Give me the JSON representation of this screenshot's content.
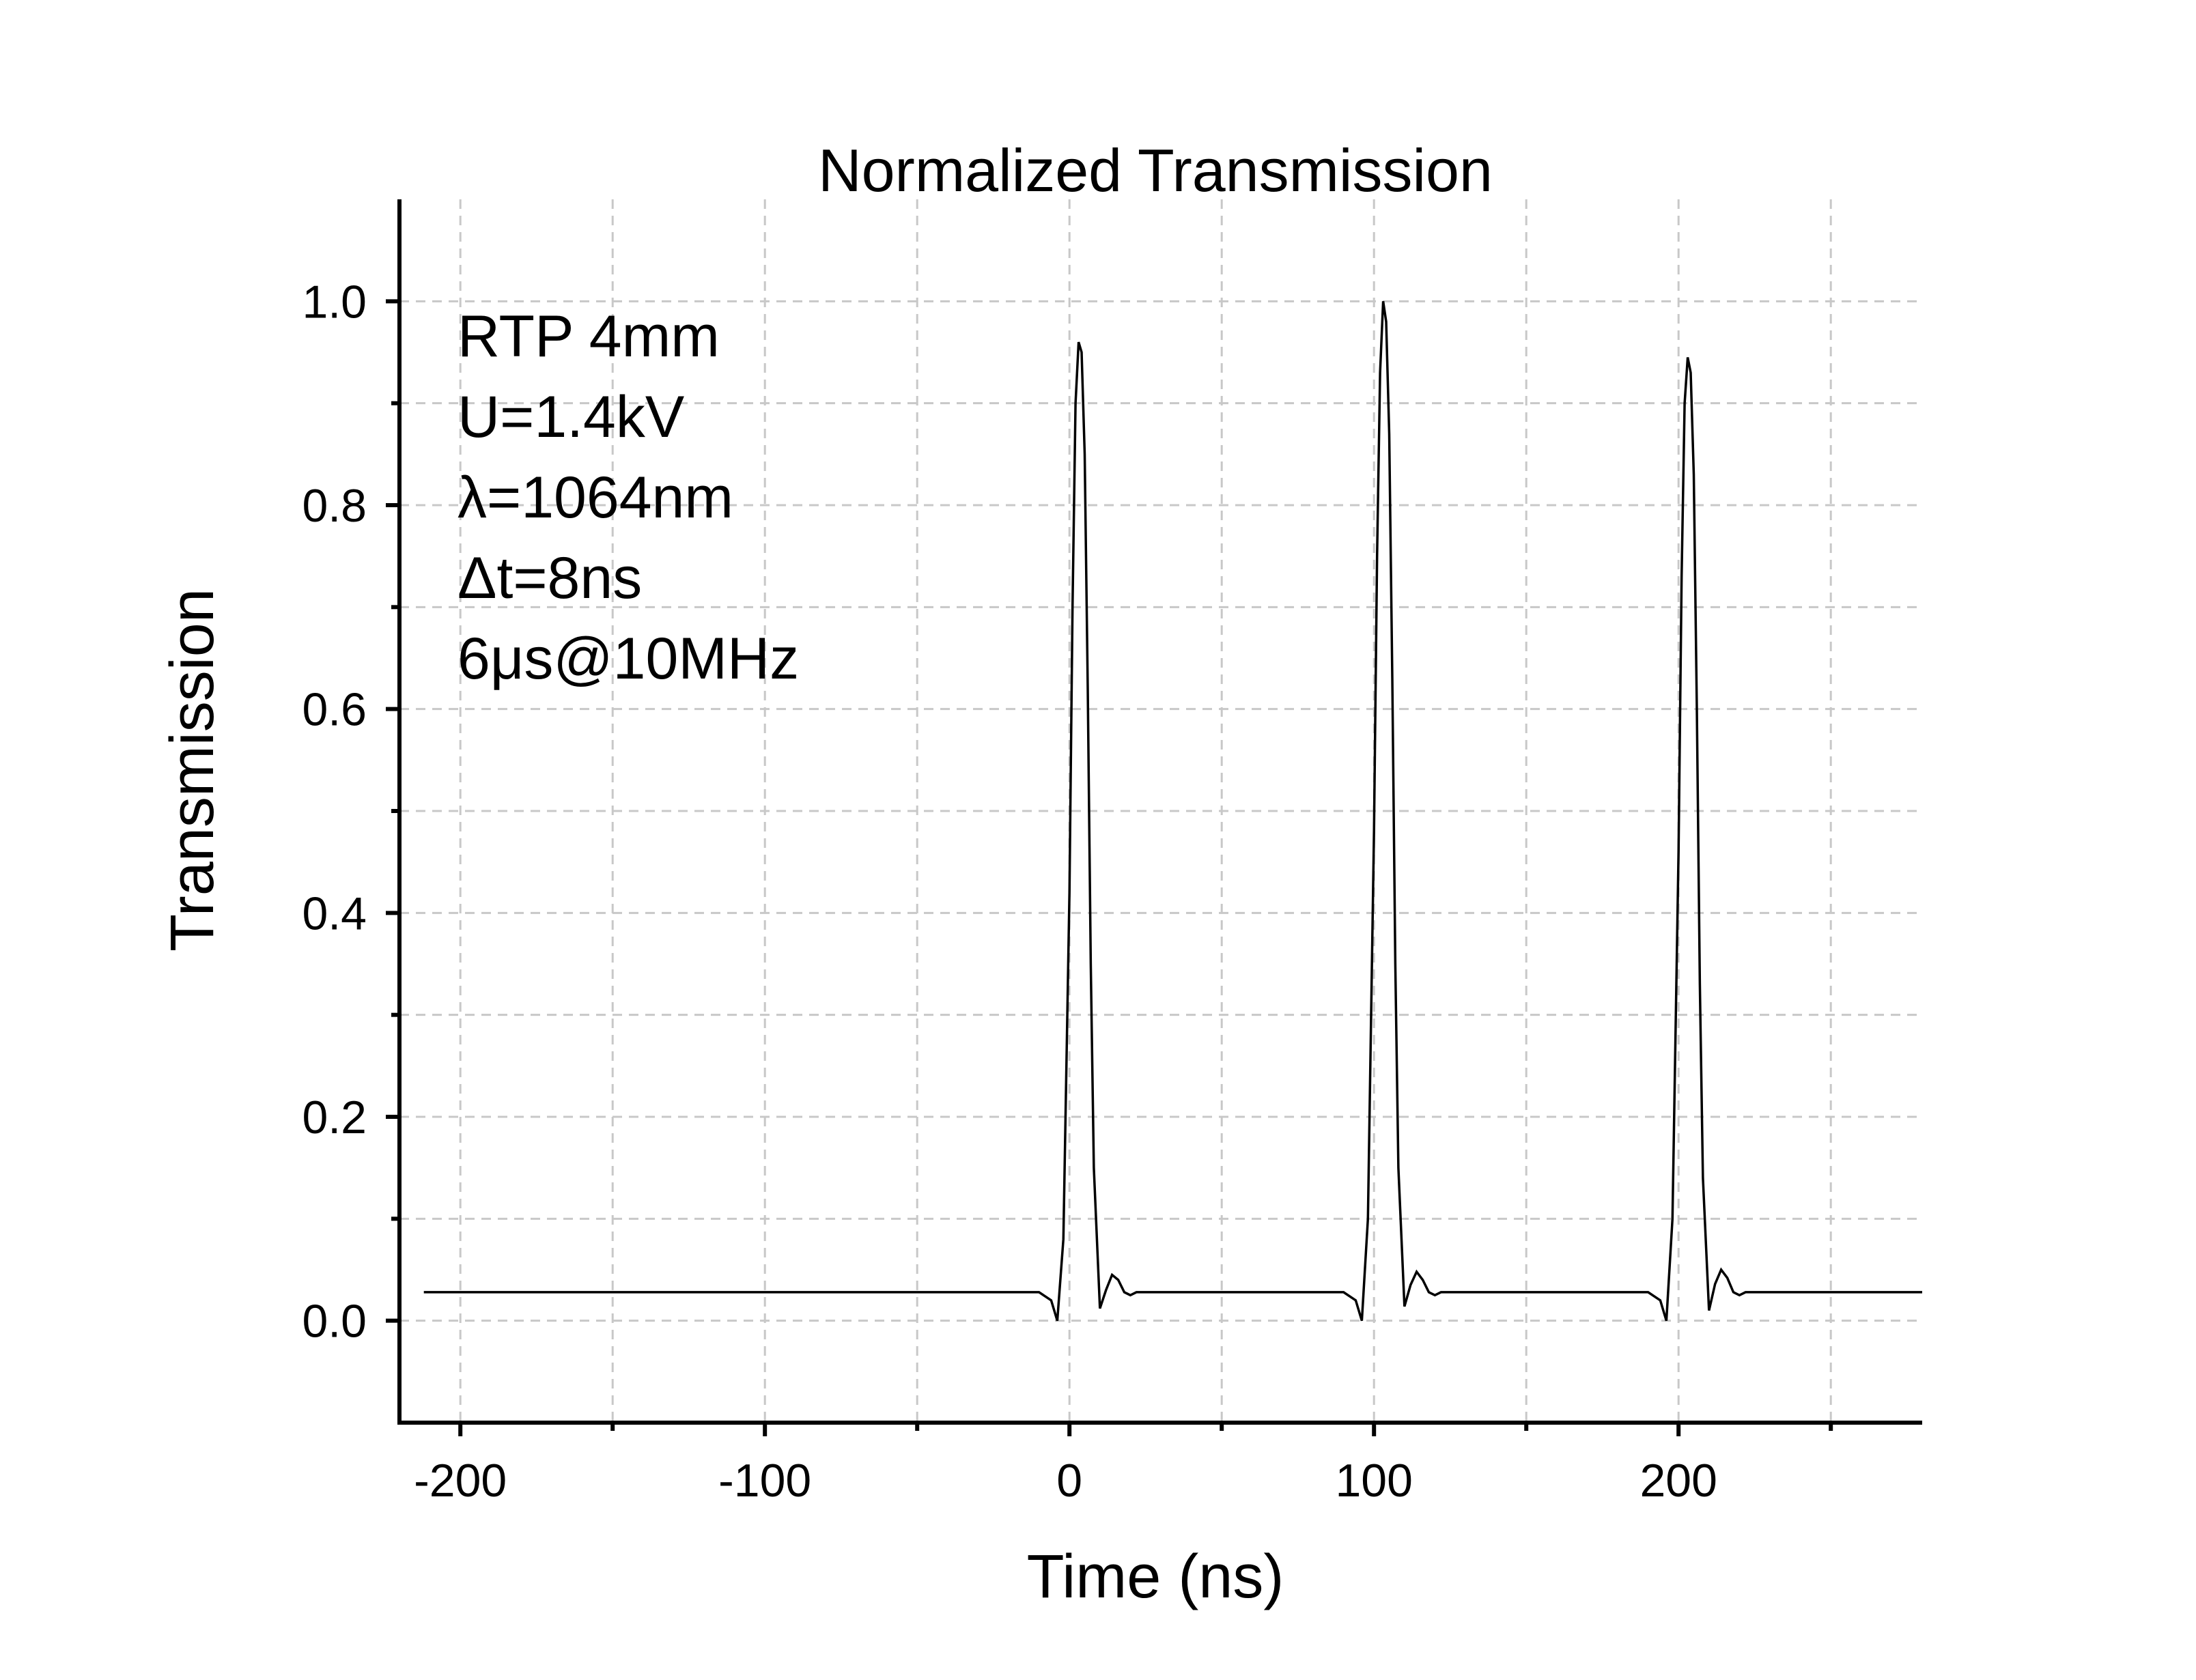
{
  "chart_data": {
    "type": "line",
    "title": "Normalized Transmission",
    "xlabel": "Time (ns)",
    "ylabel": "Transmission",
    "xlim": [
      -220,
      280
    ],
    "ylim": [
      -0.1,
      1.1
    ],
    "x_ticks": [
      -200,
      -100,
      0,
      100,
      200
    ],
    "x_tick_labels": [
      "-200",
      "-100",
      "0",
      "100",
      "200"
    ],
    "x_minor_ticks": [
      -150,
      -50,
      50,
      150,
      250
    ],
    "y_ticks": [
      0.0,
      0.2,
      0.4,
      0.6,
      0.8,
      1.0
    ],
    "y_tick_labels": [
      "0.0",
      "0.2",
      "0.4",
      "0.6",
      "0.8",
      "1.0"
    ],
    "y_minor_ticks": [
      0.1,
      0.3,
      0.5,
      0.7,
      0.9
    ],
    "grid": true,
    "annotations": [
      "RTP 4mm",
      "U=1.4kV",
      "λ=1064nm",
      "Δt=8ns",
      "6μs@10MHz"
    ],
    "baseline": 0.028,
    "series": [
      {
        "color": "#000000",
        "x": [
          -212,
          -10,
          -6,
          -4,
          -2,
          0,
          1,
          2,
          3,
          4,
          5,
          6,
          7,
          8,
          10,
          12,
          14,
          16,
          18,
          20,
          22,
          90,
          94,
          96,
          98,
          100,
          101,
          102,
          103,
          104,
          105,
          106,
          107,
          108,
          110,
          112,
          114,
          116,
          118,
          120,
          122,
          190,
          194,
          196,
          198,
          200,
          201,
          202,
          203,
          204,
          205,
          206,
          207,
          208,
          210,
          212,
          214,
          216,
          218,
          220,
          222,
          280
        ],
        "y": [
          0.028,
          0.028,
          0.02,
          0.0,
          0.08,
          0.42,
          0.7,
          0.9,
          0.96,
          0.95,
          0.85,
          0.62,
          0.35,
          0.15,
          0.012,
          0.03,
          0.045,
          0.04,
          0.028,
          0.025,
          0.028,
          0.028,
          0.02,
          0.0,
          0.1,
          0.48,
          0.75,
          0.93,
          1.0,
          0.98,
          0.87,
          0.63,
          0.35,
          0.15,
          0.014,
          0.035,
          0.048,
          0.04,
          0.028,
          0.025,
          0.028,
          0.028,
          0.02,
          0.0,
          0.1,
          0.46,
          0.73,
          0.9,
          0.945,
          0.93,
          0.83,
          0.6,
          0.33,
          0.14,
          0.01,
          0.036,
          0.05,
          0.042,
          0.028,
          0.025,
          0.028,
          0.028
        ]
      }
    ]
  }
}
